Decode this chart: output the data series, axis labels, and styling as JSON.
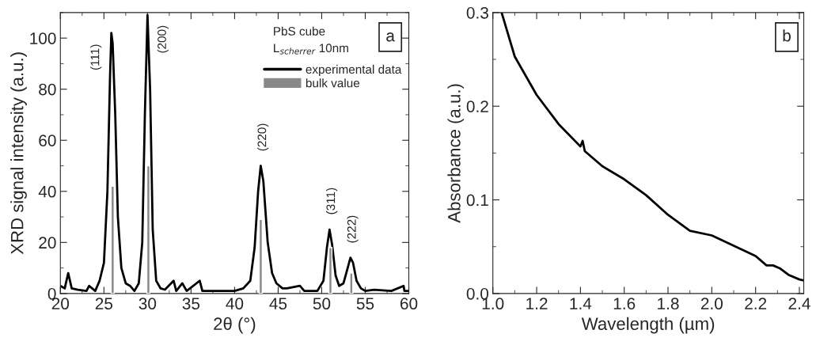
{
  "chart_data": [
    {
      "type": "line",
      "xlabel": "2θ (°)",
      "ylabel": "XRD signal intensity (a.u.)",
      "xlim": [
        20,
        60
      ],
      "ylim": [
        0,
        110
      ],
      "xticks": [
        20,
        25,
        30,
        35,
        40,
        45,
        50,
        55,
        60
      ],
      "yticks": [
        0,
        20,
        40,
        60,
        80,
        100
      ],
      "legend": "top right",
      "series": [
        {
          "name": "experimental data",
          "color": "#000000",
          "x": [
            20,
            20.5,
            20.9,
            21.3,
            22,
            23,
            23.3,
            24,
            24.5,
            25,
            25.4,
            25.7,
            25.85,
            26,
            26.3,
            26.6,
            27,
            27.5,
            28,
            28.5,
            29,
            29.4,
            29.7,
            30,
            30.3,
            30.6,
            31,
            31.5,
            32,
            33,
            33.3,
            34,
            34.5,
            36,
            36.3,
            38,
            40,
            41,
            41.8,
            42.3,
            42.7,
            43,
            43.3,
            43.8,
            44.3,
            44.8,
            45.5,
            46,
            47.5,
            48,
            49.5,
            50.2,
            50.6,
            50.9,
            51.2,
            51.6,
            52,
            52.5,
            52.9,
            53.3,
            53.6,
            54,
            54.5,
            55,
            56,
            58,
            59.4,
            59.5,
            60
          ],
          "values": [
            3,
            2,
            8,
            2,
            1.5,
            1,
            3,
            1,
            5,
            12,
            40,
            85,
            102,
            98,
            70,
            30,
            10,
            4,
            3,
            1,
            4,
            20,
            70,
            109,
            80,
            25,
            5,
            2,
            1.5,
            5,
            1,
            4,
            1,
            5,
            1,
            1,
            1,
            2,
            5,
            18,
            40,
            50,
            44,
            20,
            8,
            4,
            2,
            2,
            3,
            1,
            1,
            5,
            18,
            25,
            19,
            7,
            3,
            4,
            9,
            14,
            12,
            5,
            2,
            1,
            1.5,
            1,
            3,
            1,
            1
          ]
        },
        {
          "name": "bulk value",
          "type": "bar",
          "color": "#888888",
          "x": [
            26,
            30.1,
            43,
            51,
            53.4
          ],
          "values": [
            42,
            50,
            29,
            18,
            8
          ]
        }
      ],
      "annotations": [
        {
          "text": "(111)",
          "x": 25.85,
          "y": 102
        },
        {
          "text": "(200)",
          "x": 30,
          "y": 109
        },
        {
          "text": "(220)",
          "x": 43,
          "y": 50
        },
        {
          "text": "(311)",
          "x": 50.9,
          "y": 25
        },
        {
          "text": "(222)",
          "x": 53.3,
          "y": 14
        },
        "PbS cube",
        "L$_{scherrer}$ 10nm",
        "a"
      ]
    },
    {
      "type": "line",
      "xlabel": "Wavelength (µm)",
      "ylabel": "Absorbance (a.u.)",
      "xlim": [
        1.0,
        2.42
      ],
      "ylim": [
        0.0,
        0.3
      ],
      "xticks": [
        {
          "value": 1.0,
          "label": "1.0"
        },
        1.2,
        1.4,
        1.6,
        1.8,
        {
          "value": 2.0,
          "label": "2.0"
        },
        2.2,
        2.4
      ],
      "yticks": [
        {
          "value": 0.0,
          "label": "0.0"
        },
        0.1,
        0.2,
        0.3
      ],
      "series": [
        {
          "color": "#000000",
          "x": [
            1.04,
            1.1,
            1.2,
            1.3,
            1.4,
            1.41,
            1.42,
            1.5,
            1.6,
            1.7,
            1.8,
            1.9,
            2.0,
            2.1,
            2.2,
            2.25,
            2.28,
            2.31,
            2.35,
            2.4,
            2.42
          ],
          "values": [
            0.3,
            0.253,
            0.212,
            0.181,
            0.157,
            0.163,
            0.152,
            0.136,
            0.122,
            0.105,
            0.084,
            0.067,
            0.062,
            0.051,
            0.04,
            0.03,
            0.03,
            0.027,
            0.02,
            0.015,
            0.014
          ]
        }
      ],
      "annotations": [
        "b"
      ]
    }
  ]
}
